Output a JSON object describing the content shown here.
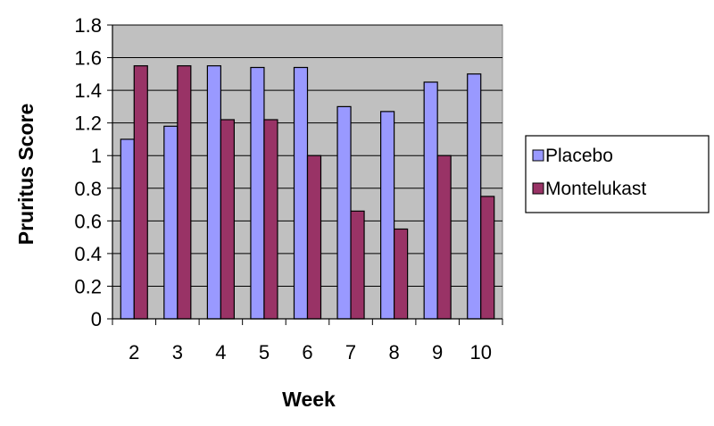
{
  "chart_data": {
    "type": "bar",
    "title": "",
    "xlabel": "Week",
    "ylabel": "Pruritus Score",
    "categories": [
      "2",
      "3",
      "4",
      "5",
      "6",
      "7",
      "8",
      "9",
      "10"
    ],
    "series": [
      {
        "name": "Placebo",
        "values": [
          1.1,
          1.18,
          1.55,
          1.54,
          1.54,
          1.3,
          1.27,
          1.45,
          1.5
        ],
        "color": "#9999ff"
      },
      {
        "name": "Montelukast",
        "values": [
          1.55,
          1.55,
          1.22,
          1.22,
          1.0,
          0.66,
          0.55,
          1.0,
          0.75
        ],
        "color": "#993366"
      }
    ],
    "ylim": [
      0,
      1.8
    ],
    "yticks": [
      "0",
      "0.2",
      "0.4",
      "0.6",
      "0.8",
      "1",
      "1.2",
      "1.4",
      "1.6",
      "1.8"
    ],
    "grid": true,
    "plot_background": "#c0c0c0",
    "legend_position": "right"
  }
}
